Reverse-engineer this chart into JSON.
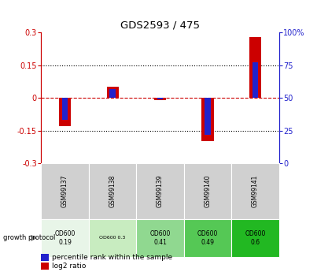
{
  "title": "GDS2593 / 475",
  "samples": [
    "GSM99137",
    "GSM99138",
    "GSM99139",
    "GSM99140",
    "GSM99141"
  ],
  "log2_ratio": [
    -0.13,
    0.05,
    -0.01,
    -0.2,
    0.28
  ],
  "percentile_rank": [
    33,
    57,
    49,
    22,
    77
  ],
  "ylim": [
    -0.3,
    0.3
  ],
  "yticks_left": [
    -0.3,
    -0.15,
    0,
    0.15,
    0.3
  ],
  "yticks_right": [
    0,
    25,
    50,
    75,
    100
  ],
  "hlines": [
    0.15,
    -0.15
  ],
  "red_bar_width": 0.25,
  "blue_bar_width": 0.12,
  "red_color": "#cc0000",
  "blue_color": "#2222cc",
  "growth_protocol_labels": [
    "OD600\n0.19",
    "OD600 0.3",
    "OD600\n0.41",
    "OD600\n0.49",
    "OD600\n0.6"
  ],
  "protocol_colors": [
    "#e8f5e8",
    "#c8ecc0",
    "#90d890",
    "#55c855",
    "#22b822"
  ],
  "sample_bg_color": "#d0d0d0",
  "legend_red_label": "log2 ratio",
  "legend_blue_label": "percentile rank within the sample"
}
